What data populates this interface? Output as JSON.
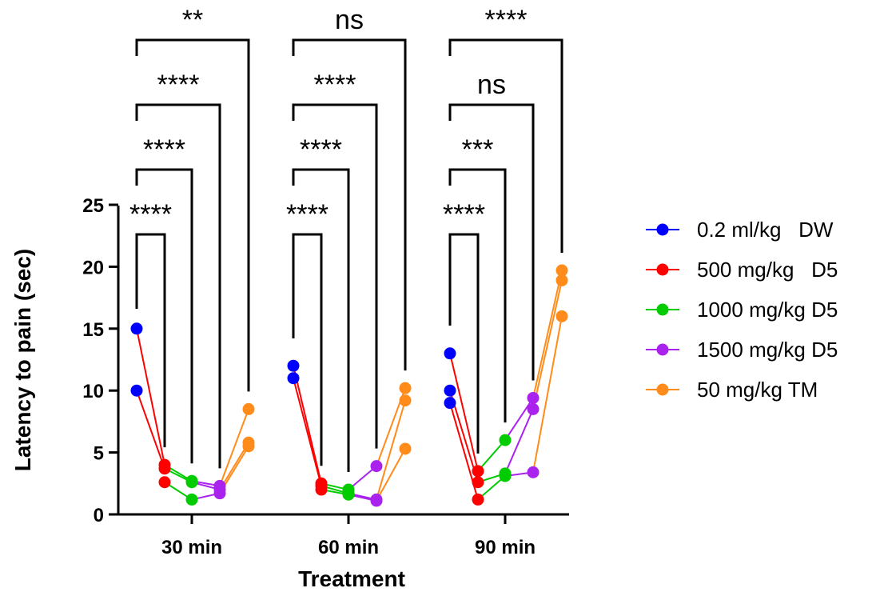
{
  "chart_data": {
    "type": "line",
    "xlabel": "Treatment",
    "ylabel": "Latency to pain (sec)",
    "ylim": [
      0,
      25
    ],
    "yticks": [
      0,
      5,
      10,
      15,
      20,
      25
    ],
    "categories": [
      "30 min",
      "60 min",
      "90 min"
    ],
    "grid": false,
    "legend_position": "right",
    "series": [
      {
        "name": "0.2 ml/kg   DW",
        "color": "#0000ff",
        "points": {
          "30 min": [
            15,
            10
          ],
          "60 min": [
            12,
            11
          ],
          "90 min": [
            13,
            10,
            9
          ]
        }
      },
      {
        "name": "500 mg/kg   D5",
        "color": "#ff0000",
        "points": {
          "30 min": [
            4,
            3.7,
            2.6
          ],
          "60 min": [
            2.5,
            2.3,
            2.0
          ],
          "90 min": [
            3.5,
            2.6,
            1.2
          ]
        }
      },
      {
        "name": "1000 mg/kg D5",
        "color": "#00cc00",
        "points": {
          "30 min": [
            2.7,
            2.6,
            1.2
          ],
          "60 min": [
            2.0,
            1.7,
            1.6
          ],
          "90 min": [
            6.0,
            3.3,
            3.1
          ]
        }
      },
      {
        "name": "1500 mg/kg D5",
        "color": "#aa22ee",
        "points": {
          "30 min": [
            2.3,
            2.0,
            1.7
          ],
          "60 min": [
            3.9,
            1.2,
            1.1
          ],
          "90 min": [
            9.4,
            8.5,
            3.4
          ]
        }
      },
      {
        "name": "50 mg/kg TM",
        "color": "#ff8c1a",
        "points": {
          "30 min": [
            8.5,
            5.8,
            5.5
          ],
          "60 min": [
            10.2,
            9.2,
            5.3
          ],
          "90 min": [
            19.7,
            18.9,
            16.0
          ]
        }
      }
    ],
    "significance": [
      {
        "group": "30 min",
        "comparisons": [
          "****",
          "****",
          "****",
          "**"
        ]
      },
      {
        "group": "60 min",
        "comparisons": [
          "****",
          "****",
          "****",
          "ns"
        ]
      },
      {
        "group": "90 min",
        "comparisons": [
          "****",
          "***",
          "ns",
          "****"
        ]
      }
    ]
  }
}
